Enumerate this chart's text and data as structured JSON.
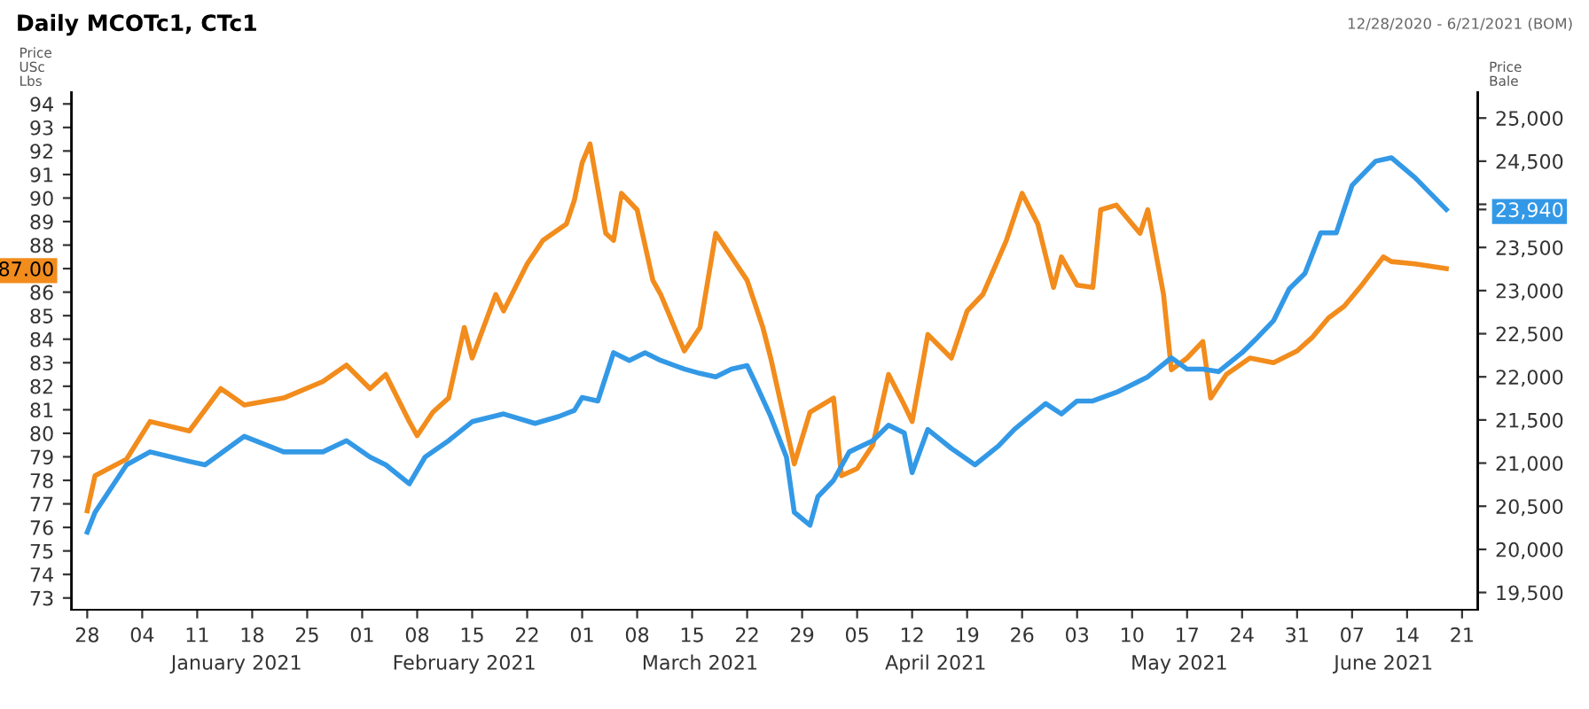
{
  "chart_data": {
    "type": "line",
    "title": "Daily MCOTc1, CTc1",
    "ylabel": "Price\nUSc\nLbs",
    "y2label": "Price\nBale",
    "annotations": [
      "12/28/2020 - 6/21/2021 (BOM)"
    ],
    "series": [
      {
        "color": "#f28c1c",
        "axis": "y",
        "x": [
          "2020-12-28",
          "2020-12-29",
          "2021-01-02",
          "2021-01-05",
          "2021-01-10",
          "2021-01-14",
          "2021-01-17",
          "2021-01-22",
          "2021-01-27",
          "2021-01-30",
          "2021-02-02",
          "2021-02-04",
          "2021-02-07",
          "2021-02-08",
          "2021-02-10",
          "2021-02-12",
          "2021-02-14",
          "2021-02-15",
          "2021-02-18",
          "2021-02-19",
          "2021-02-22",
          "2021-02-24",
          "2021-02-27",
          "2021-02-28",
          "2021-03-01",
          "2021-03-02",
          "2021-03-04",
          "2021-03-05",
          "2021-03-06",
          "2021-03-08",
          "2021-03-10",
          "2021-03-11",
          "2021-03-14",
          "2021-03-16",
          "2021-03-18",
          "2021-03-20",
          "2021-03-22",
          "2021-03-24",
          "2021-03-25",
          "2021-03-27",
          "2021-03-28",
          "2021-03-30",
          "2021-04-02",
          "2021-04-03",
          "2021-04-05",
          "2021-04-07",
          "2021-04-09",
          "2021-04-11",
          "2021-04-12",
          "2021-04-14",
          "2021-04-17",
          "2021-04-19",
          "2021-04-21",
          "2021-04-24",
          "2021-04-26",
          "2021-04-28",
          "2021-04-30",
          "2021-05-01",
          "2021-05-03",
          "2021-05-05",
          "2021-05-06",
          "2021-05-08",
          "2021-05-11",
          "2021-05-12",
          "2021-05-14",
          "2021-05-15",
          "2021-05-17",
          "2021-05-19",
          "2021-05-20",
          "2021-05-22",
          "2021-05-25",
          "2021-05-28",
          "2021-05-31",
          "2021-06-02",
          "2021-06-04",
          "2021-06-06",
          "2021-06-08",
          "2021-06-11",
          "2021-06-12",
          "2021-06-15",
          "2021-06-19"
        ],
        "values": [
          76.7,
          78.2,
          78.9,
          80.5,
          80.1,
          81.9,
          81.2,
          81.5,
          82.2,
          82.9,
          81.9,
          82.5,
          80.5,
          79.9,
          80.9,
          81.5,
          84.5,
          83.2,
          85.9,
          85.2,
          87.2,
          88.2,
          88.9,
          89.9,
          91.5,
          92.3,
          88.5,
          88.2,
          90.2,
          89.5,
          86.5,
          85.9,
          83.5,
          84.5,
          88.5,
          87.5,
          86.5,
          84.5,
          83.2,
          80.2,
          78.7,
          80.9,
          81.5,
          78.2,
          78.5,
          79.5,
          82.5,
          81.2,
          80.5,
          84.2,
          83.2,
          85.2,
          85.9,
          88.2,
          90.2,
          88.9,
          86.2,
          87.5,
          86.3,
          86.2,
          89.5,
          89.7,
          88.5,
          89.5,
          85.9,
          82.7,
          83.2,
          83.9,
          81.5,
          82.5,
          83.2,
          83.0,
          83.5,
          84.1,
          84.9,
          85.4,
          86.2,
          87.5,
          87.3,
          87.2,
          87.0
        ]
      },
      {
        "color": "#3399e6",
        "axis": "y2",
        "x": [
          "2020-12-28",
          "2020-12-29",
          "2021-01-02",
          "2021-01-05",
          "2021-01-10",
          "2021-01-12",
          "2021-01-17",
          "2021-01-22",
          "2021-01-27",
          "2021-01-30",
          "2021-02-02",
          "2021-02-04",
          "2021-02-07",
          "2021-02-09",
          "2021-02-12",
          "2021-02-15",
          "2021-02-19",
          "2021-02-23",
          "2021-02-26",
          "2021-02-28",
          "2021-03-01",
          "2021-03-03",
          "2021-03-05",
          "2021-03-07",
          "2021-03-09",
          "2021-03-11",
          "2021-03-14",
          "2021-03-16",
          "2021-03-18",
          "2021-03-20",
          "2021-03-22",
          "2021-03-23",
          "2021-03-25",
          "2021-03-27",
          "2021-03-28",
          "2021-03-30",
          "2021-03-31",
          "2021-04-02",
          "2021-04-04",
          "2021-04-07",
          "2021-04-09",
          "2021-04-11",
          "2021-04-12",
          "2021-04-14",
          "2021-04-17",
          "2021-04-20",
          "2021-04-23",
          "2021-04-25",
          "2021-04-27",
          "2021-04-29",
          "2021-05-01",
          "2021-05-03",
          "2021-05-05",
          "2021-05-08",
          "2021-05-12",
          "2021-05-15",
          "2021-05-17",
          "2021-05-19",
          "2021-05-21",
          "2021-05-24",
          "2021-05-26",
          "2021-05-28",
          "2021-05-30",
          "2021-06-01",
          "2021-06-03",
          "2021-06-05",
          "2021-06-07",
          "2021-06-10",
          "2021-06-12",
          "2021-06-15",
          "2021-06-19"
        ],
        "values": [
          20200,
          20430,
          20980,
          21130,
          21020,
          20980,
          21310,
          21130,
          21130,
          21260,
          21070,
          20980,
          20760,
          21070,
          21260,
          21480,
          21570,
          21460,
          21540,
          21610,
          21760,
          21720,
          22280,
          22190,
          22280,
          22190,
          22090,
          22040,
          22000,
          22090,
          22130,
          21940,
          21540,
          21070,
          20430,
          20280,
          20610,
          20800,
          21130,
          21260,
          21440,
          21350,
          20890,
          21390,
          21170,
          20980,
          21200,
          21390,
          21540,
          21690,
          21570,
          21720,
          21720,
          21820,
          22000,
          22220,
          22090,
          22090,
          22060,
          22280,
          22460,
          22650,
          23020,
          23200,
          23670,
          23670,
          24220,
          24500,
          24540,
          24310,
          23940
        ]
      }
    ],
    "xlim": [
      "2020-12-26",
      "2021-06-23"
    ],
    "xticks": [
      {
        "value": "2020-12-28",
        "label": "28"
      },
      {
        "value": "2021-01-04",
        "label": "04"
      },
      {
        "value": "2021-01-11",
        "label": "11"
      },
      {
        "value": "2021-01-18",
        "label": "18"
      },
      {
        "value": "2021-01-25",
        "label": "25"
      },
      {
        "value": "2021-02-01",
        "label": "01"
      },
      {
        "value": "2021-02-08",
        "label": "08"
      },
      {
        "value": "2021-02-15",
        "label": "15"
      },
      {
        "value": "2021-02-22",
        "label": "22"
      },
      {
        "value": "2021-03-01",
        "label": "01"
      },
      {
        "value": "2021-03-08",
        "label": "08"
      },
      {
        "value": "2021-03-15",
        "label": "15"
      },
      {
        "value": "2021-03-22",
        "label": "22"
      },
      {
        "value": "2021-03-29",
        "label": "29"
      },
      {
        "value": "2021-04-05",
        "label": "05"
      },
      {
        "value": "2021-04-12",
        "label": "12"
      },
      {
        "value": "2021-04-19",
        "label": "19"
      },
      {
        "value": "2021-04-26",
        "label": "26"
      },
      {
        "value": "2021-05-03",
        "label": "03"
      },
      {
        "value": "2021-05-10",
        "label": "10"
      },
      {
        "value": "2021-05-17",
        "label": "17"
      },
      {
        "value": "2021-05-24",
        "label": "24"
      },
      {
        "value": "2021-05-31",
        "label": "31"
      },
      {
        "value": "2021-06-07",
        "label": "07"
      },
      {
        "value": "2021-06-14",
        "label": "14"
      },
      {
        "value": "2021-06-21",
        "label": "21"
      }
    ],
    "x2lim": [
      "2020-12-26",
      "2021-06-23"
    ],
    "x2ticks": [
      {
        "value": "2021-01-16",
        "label": "January 2021"
      },
      {
        "value": "2021-02-14",
        "label": "February 2021"
      },
      {
        "value": "2021-03-16",
        "label": "March 2021"
      },
      {
        "value": "2021-04-15",
        "label": "April 2021"
      },
      {
        "value": "2021-05-16",
        "label": "May 2021"
      },
      {
        "value": "2021-06-11",
        "label": "June 2021"
      }
    ],
    "ylim": [
      72.5,
      94.5
    ],
    "yticks": [
      73,
      74,
      75,
      76,
      77,
      78,
      79,
      80,
      81,
      82,
      83,
      84,
      85,
      86,
      {
        "value": 87,
        "label": "87.00"
      },
      88,
      89,
      90,
      91,
      92,
      93,
      94
    ],
    "y2lim": [
      19300,
      25300
    ],
    "y2ticks": [
      {
        "value": 19500,
        "label": "19,500"
      },
      {
        "value": 20000,
        "label": "20,000"
      },
      {
        "value": 20500,
        "label": "20,500"
      },
      {
        "value": 21000,
        "label": "21,000"
      },
      {
        "value": 21500,
        "label": "21,500"
      },
      {
        "value": 22000,
        "label": "22,000"
      },
      {
        "value": 22500,
        "label": "22,500"
      },
      {
        "value": 23000,
        "label": "23,000"
      },
      {
        "value": 23500,
        "label": "23,500"
      },
      {
        "value": 23940,
        "label": "23,940"
      },
      {
        "value": 24000,
        "label": null
      },
      {
        "value": 24500,
        "label": "24,500"
      },
      {
        "value": 25000,
        "label": "25,000"
      }
    ],
    "line_style": "solid",
    "marker": "none"
  }
}
